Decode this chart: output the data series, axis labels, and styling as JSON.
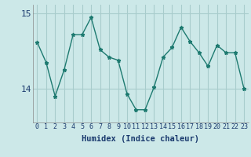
{
  "x": [
    0,
    1,
    2,
    3,
    4,
    5,
    6,
    7,
    8,
    9,
    10,
    11,
    12,
    13,
    14,
    15,
    16,
    17,
    18,
    19,
    20,
    21,
    22,
    23
  ],
  "y": [
    14.62,
    14.35,
    13.9,
    14.25,
    14.72,
    14.72,
    14.95,
    14.52,
    14.42,
    14.38,
    13.93,
    13.72,
    13.72,
    14.02,
    14.42,
    14.55,
    14.82,
    14.63,
    14.48,
    14.3,
    14.58,
    14.48,
    14.48,
    14.0
  ],
  "ylim": [
    13.55,
    15.12
  ],
  "yticks": [
    14,
    15
  ],
  "xlim": [
    -0.5,
    23.5
  ],
  "xlabel": "Humidex (Indice chaleur)",
  "line_color": "#1d7a70",
  "marker": "*",
  "marker_size": 3.5,
  "bg_color": "#cce8e8",
  "grid_color": "#a8cccc",
  "tick_label_color": "#1a3a6e",
  "xlabel_color": "#1a3a6e",
  "line_width": 1.0,
  "xlabel_fontsize": 7.5,
  "ytick_fontsize": 8,
  "xtick_fontsize": 6
}
